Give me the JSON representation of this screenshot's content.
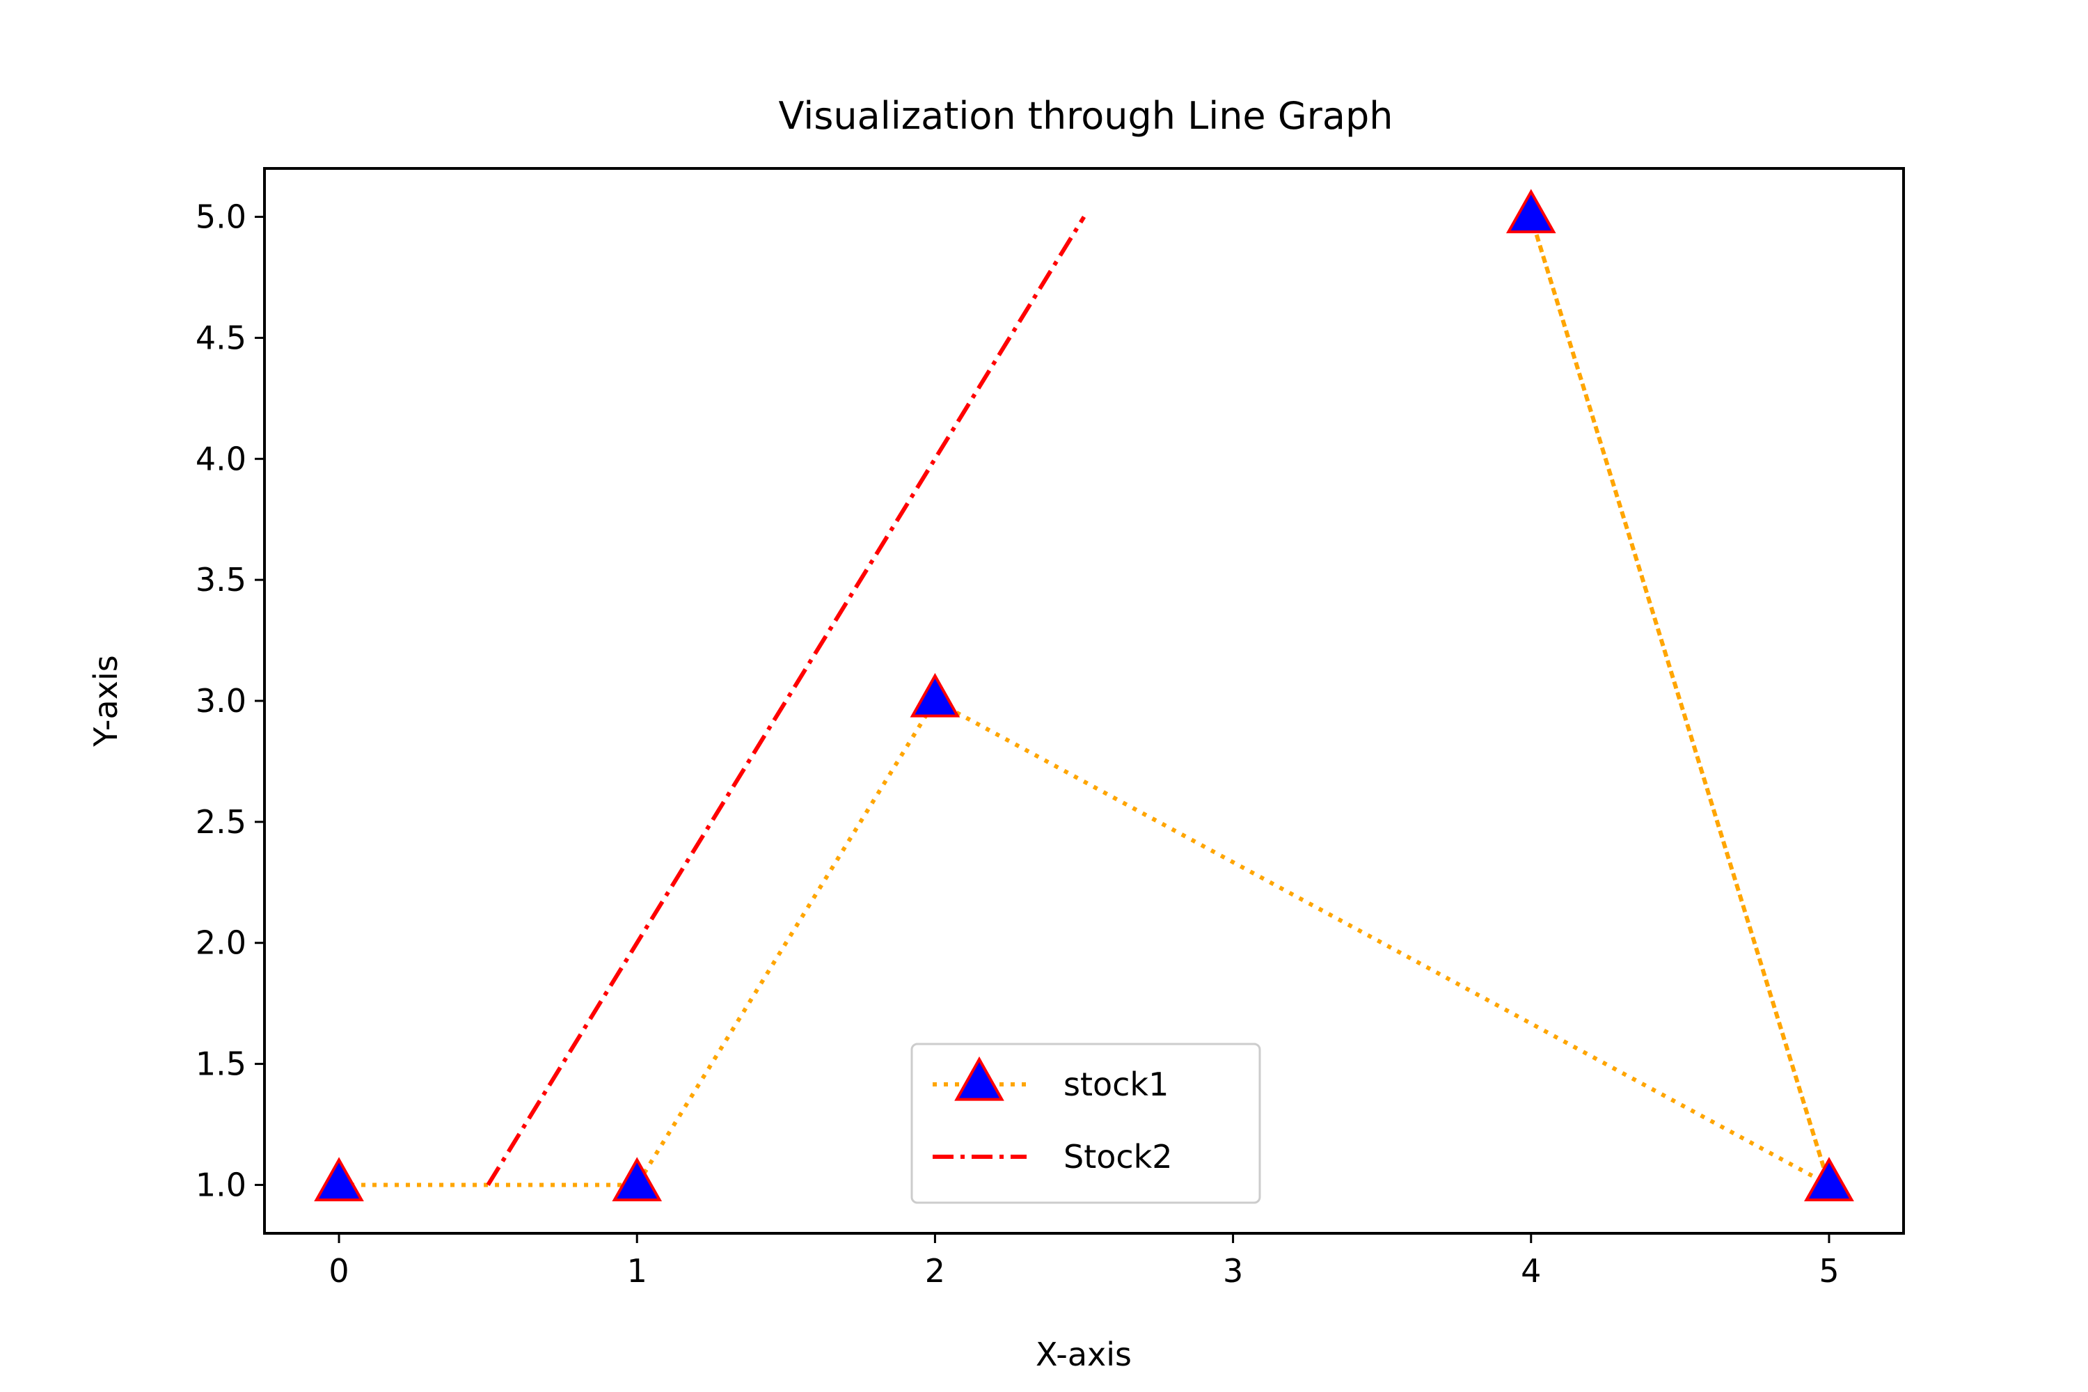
{
  "chart_data": {
    "type": "line",
    "title": "Visualization through Line Graph",
    "xlabel": "X-axis",
    "ylabel": "Y-axis",
    "xlim": [
      -0.25,
      5.25
    ],
    "ylim": [
      0.8,
      5.2
    ],
    "x_ticks": [
      0,
      1,
      2,
      3,
      4,
      5
    ],
    "x_tick_labels": [
      "0",
      "1",
      "2",
      "3",
      "4",
      "5"
    ],
    "y_ticks": [
      1.0,
      1.5,
      2.0,
      2.5,
      3.0,
      3.5,
      4.0,
      4.5,
      5.0
    ],
    "y_tick_labels": [
      "1.0",
      "1.5",
      "2.0",
      "2.5",
      "3.0",
      "3.5",
      "4.0",
      "4.5",
      "5.0"
    ],
    "grid": false,
    "legend_position": "lower center",
    "series": [
      {
        "name": "stock1",
        "color": "#ffa500",
        "line_style": "dotted",
        "marker": "triangle-up",
        "marker_face": "#0000ff",
        "marker_edge": "#ff0000",
        "points": [
          {
            "x": 0,
            "y": 1.0
          },
          {
            "x": 1,
            "y": 1.0
          },
          {
            "x": 2,
            "y": 3.0
          },
          {
            "x": 5,
            "y": 1.0
          },
          {
            "x": 4,
            "y": 5.0
          },
          {
            "x": 5,
            "y": 1.0
          }
        ]
      },
      {
        "name": "Stock2",
        "color": "#ff0000",
        "line_style": "dashdot",
        "marker": "none",
        "points": [
          {
            "x": 0.5,
            "y": 1.0
          },
          {
            "x": 2.5,
            "y": 5.0
          }
        ]
      }
    ]
  }
}
